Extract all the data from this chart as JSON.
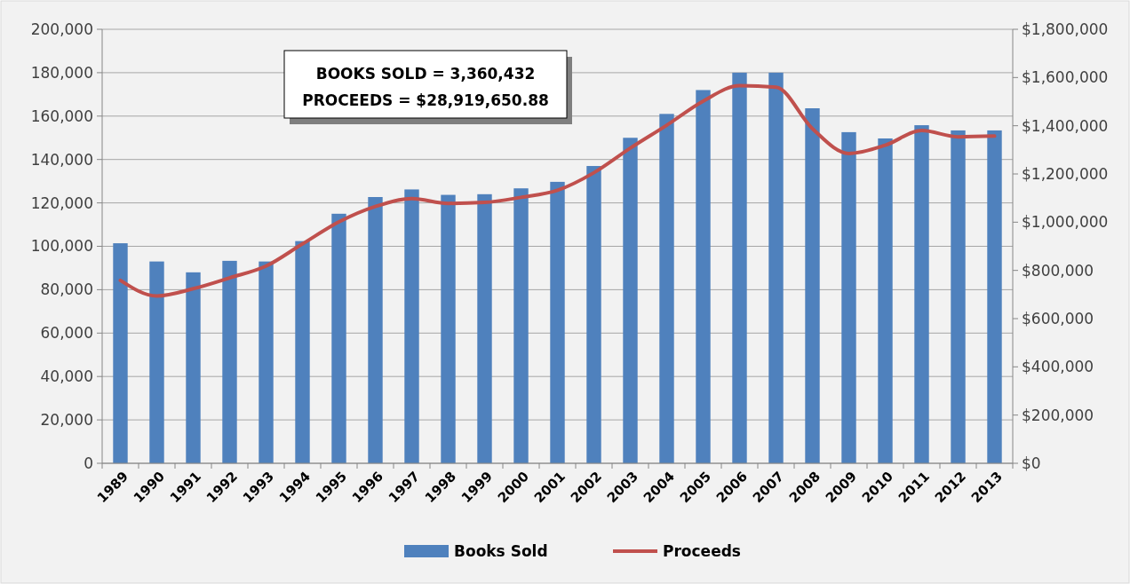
{
  "chart_data": {
    "type": "bar",
    "categories": [
      "1989",
      "1990",
      "1991",
      "1992",
      "1993",
      "1994",
      "1995",
      "1996",
      "1997",
      "1998",
      "1999",
      "2000",
      "2001",
      "2002",
      "2003",
      "2004",
      "2005",
      "2006",
      "2007",
      "2008",
      "2009",
      "2010",
      "2011",
      "2012",
      "2013"
    ],
    "series": [
      {
        "name": "Books Sold",
        "color": "#4f81bd",
        "values": [
          101400,
          93000,
          88000,
          93300,
          93000,
          102400,
          115000,
          122700,
          126200,
          123700,
          124000,
          126700,
          129700,
          137000,
          150000,
          161000,
          172000,
          180000,
          180000,
          163600,
          152600,
          149700,
          155800,
          153400,
          153400
        ]
      },
      {
        "name": "Proceeds",
        "type": "line",
        "axis": "y2",
        "color": "#c0504d",
        "values": [
          759000,
          694000,
          724000,
          769000,
          818000,
          910000,
          1001000,
          1065000,
          1098000,
          1078000,
          1082000,
          1103000,
          1132000,
          1205000,
          1307000,
          1402000,
          1502000,
          1566000,
          1560000,
          1388000,
          1285000,
          1319000,
          1380000,
          1354000,
          1357000
        ]
      }
    ],
    "ylim": [
      0,
      200000
    ],
    "yticks": [
      {
        "value": 0,
        "label": "0"
      },
      {
        "value": 20000,
        "label": "20,000"
      },
      {
        "value": 40000,
        "label": "40,000"
      },
      {
        "value": 60000,
        "label": "60,000"
      },
      {
        "value": 80000,
        "label": "80,000"
      },
      {
        "value": 100000,
        "label": "100,000"
      },
      {
        "value": 120000,
        "label": "120,000"
      },
      {
        "value": 140000,
        "label": "140,000"
      },
      {
        "value": 160000,
        "label": "160,000"
      },
      {
        "value": 180000,
        "label": "180,000"
      },
      {
        "value": 200000,
        "label": "200,000"
      }
    ],
    "y2lim": [
      0,
      1800000
    ],
    "y2ticks": [
      {
        "value": 0,
        "label": "$0"
      },
      {
        "value": 200000,
        "label": "$200,000"
      },
      {
        "value": 400000,
        "label": "$400,000"
      },
      {
        "value": 600000,
        "label": "$600,000"
      },
      {
        "value": 800000,
        "label": "$800,000"
      },
      {
        "value": 1000000,
        "label": "$1,000,000"
      },
      {
        "value": 1200000,
        "label": "$1,200,000"
      },
      {
        "value": 1400000,
        "label": "$1,400,000"
      },
      {
        "value": 1600000,
        "label": "$1,600,000"
      },
      {
        "value": 1800000,
        "label": "$1,800,000"
      }
    ],
    "annotations": [
      "BOOKS SOLD = 3,360,432",
      "PROCEEDS = $28,919,650.88"
    ],
    "grid": "y",
    "legend": "bottom",
    "marker": "none",
    "line_style": "solid"
  }
}
